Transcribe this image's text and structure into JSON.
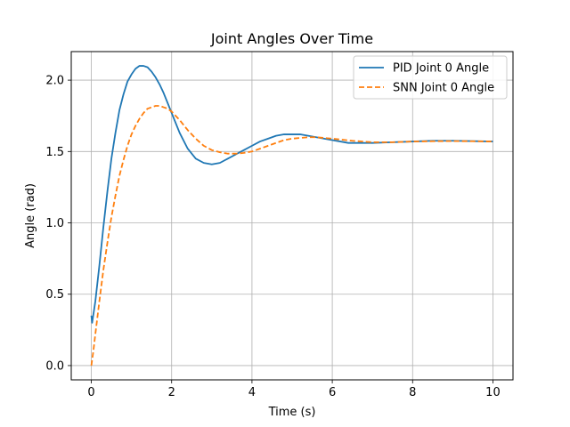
{
  "chart_data": {
    "type": "line",
    "title": "Joint Angles Over Time",
    "xlabel": "Time (s)",
    "ylabel": "Angle (rad)",
    "xlim": [
      -0.5,
      10.5
    ],
    "ylim": [
      -0.1,
      2.2
    ],
    "xticks": [
      0,
      2,
      4,
      6,
      8,
      10
    ],
    "xtick_labels": [
      "0",
      "2",
      "4",
      "6",
      "8",
      "10"
    ],
    "yticks": [
      0.0,
      0.5,
      1.0,
      1.5,
      2.0
    ],
    "ytick_labels": [
      "0.0",
      "0.5",
      "1.0",
      "1.5",
      "2.0"
    ],
    "grid": true,
    "legend_position": "top-right",
    "series": [
      {
        "name": "PID Joint 0 Angle",
        "color": "#1f77b4",
        "style": "solid",
        "x": [
          0,
          0.02,
          0.1,
          0.2,
          0.3,
          0.4,
          0.5,
          0.6,
          0.7,
          0.8,
          0.9,
          1.0,
          1.1,
          1.2,
          1.3,
          1.4,
          1.5,
          1.6,
          1.7,
          1.8,
          1.9,
          2.0,
          2.2,
          2.4,
          2.6,
          2.8,
          3.0,
          3.2,
          3.4,
          3.6,
          3.8,
          4.0,
          4.2,
          4.4,
          4.6,
          4.8,
          5.0,
          5.2,
          5.4,
          5.6,
          5.8,
          6.0,
          6.2,
          6.4,
          6.6,
          6.8,
          7.0,
          7.5,
          8.0,
          8.5,
          9.0,
          9.5,
          10.0
        ],
        "y": [
          0.35,
          0.3,
          0.45,
          0.7,
          0.97,
          1.22,
          1.45,
          1.63,
          1.79,
          1.9,
          1.99,
          2.04,
          2.08,
          2.1,
          2.1,
          2.09,
          2.06,
          2.02,
          1.97,
          1.91,
          1.84,
          1.77,
          1.63,
          1.52,
          1.45,
          1.42,
          1.41,
          1.42,
          1.45,
          1.48,
          1.51,
          1.54,
          1.57,
          1.59,
          1.61,
          1.62,
          1.62,
          1.62,
          1.61,
          1.6,
          1.59,
          1.58,
          1.57,
          1.56,
          1.56,
          1.56,
          1.56,
          1.565,
          1.57,
          1.575,
          1.575,
          1.573,
          1.57
        ]
      },
      {
        "name": "SNN Joint 0 Angle",
        "color": "#ff7f0e",
        "style": "dashed",
        "x": [
          0,
          0.05,
          0.1,
          0.2,
          0.3,
          0.4,
          0.5,
          0.6,
          0.7,
          0.8,
          0.9,
          1.0,
          1.1,
          1.2,
          1.3,
          1.4,
          1.5,
          1.6,
          1.7,
          1.8,
          1.9,
          2.0,
          2.2,
          2.4,
          2.6,
          2.8,
          3.0,
          3.2,
          3.4,
          3.6,
          3.8,
          4.0,
          4.2,
          4.4,
          4.6,
          4.8,
          5.0,
          5.2,
          5.4,
          5.6,
          5.8,
          6.0,
          6.5,
          7.0,
          7.5,
          8.0,
          8.5,
          9.0,
          9.5,
          10.0
        ],
        "y": [
          0.0,
          0.1,
          0.22,
          0.45,
          0.67,
          0.86,
          1.04,
          1.19,
          1.33,
          1.44,
          1.54,
          1.62,
          1.68,
          1.73,
          1.77,
          1.8,
          1.81,
          1.82,
          1.82,
          1.81,
          1.8,
          1.78,
          1.72,
          1.65,
          1.59,
          1.54,
          1.51,
          1.495,
          1.485,
          1.485,
          1.49,
          1.5,
          1.52,
          1.54,
          1.56,
          1.58,
          1.59,
          1.595,
          1.6,
          1.6,
          1.595,
          1.59,
          1.575,
          1.565,
          1.565,
          1.57,
          1.572,
          1.573,
          1.572,
          1.57
        ]
      }
    ]
  }
}
